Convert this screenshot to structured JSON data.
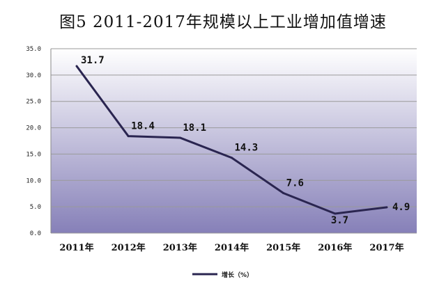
{
  "chart_data": {
    "type": "line",
    "title": "图5 2011-2017年规模以上工业增加值增速",
    "categories": [
      "2011年",
      "2012年",
      "2013年",
      "2014年",
      "2015年",
      "2016年",
      "2017年"
    ],
    "series": [
      {
        "name": "增长（%）",
        "values": [
          31.7,
          18.4,
          18.1,
          14.3,
          7.6,
          3.7,
          4.9
        ]
      }
    ],
    "data_labels": [
      "31.7",
      "18.4",
      "18.1",
      "14.3",
      "7.6",
      "3.7",
      "4.9"
    ],
    "yticks": [
      "35.0",
      "30.0",
      "25.0",
      "20.0",
      "15.0",
      "10.0",
      "5.0",
      "0.0"
    ],
    "ylim": [
      0,
      35
    ],
    "xlabel": "",
    "ylabel": "",
    "grid": true,
    "legend": "bottom",
    "colors": {
      "line": "#2a2550",
      "plot_top": "#ffffff",
      "plot_bottom": "#8680b8"
    }
  }
}
